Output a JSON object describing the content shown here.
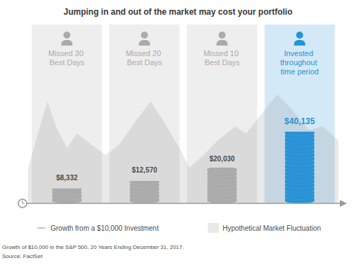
{
  "chart_data": {
    "type": "bar",
    "title": "Jumping in and out of the market may cost your portfolio",
    "categories": [
      "Missed 30 Best Days",
      "Missed 20 Best Days",
      "Missed 10 Best Days",
      "Invested throughout time period"
    ],
    "series": [
      {
        "name": "Growth from a $10,000 Investment",
        "type": "bar",
        "values": [
          8332,
          12570,
          20030,
          40135
        ],
        "value_labels": [
          "$8,332",
          "$12,570",
          "$20,030",
          "$40,135"
        ],
        "colors": [
          "#ababab",
          "#ababab",
          "#ababab",
          "#2a93d5"
        ]
      },
      {
        "name": "Hypothetical Market Fluctuation",
        "type": "area",
        "color": "rgba(120,120,120,0.16)",
        "x": [
          0,
          0.14,
          0.25,
          0.36,
          0.5,
          0.63,
          0.81,
          1.0,
          1.18,
          1.4,
          1.58,
          1.76,
          1.95,
          2.08,
          2.26,
          2.44,
          2.67,
          2.81,
          2.99,
          3.21,
          3.39,
          3.62,
          3.8,
          4.0
        ],
        "values": [
          19600,
          41000,
          57000,
          43000,
          31000,
          39000,
          33000,
          27000,
          33000,
          47000,
          57000,
          45000,
          31000,
          20000,
          27000,
          35000,
          43000,
          39000,
          49000,
          61000,
          53000,
          41000,
          43000,
          35000
        ]
      }
    ],
    "xlim": [
      0,
      4
    ],
    "ylim": [
      0,
      100000
    ],
    "data_labels": true,
    "tick_labels": false,
    "legend": "bottom",
    "annotations": [
      "Growth of $10,000 in the S&P 500, 20 Years Ending December 31, 2017.",
      "Source: FactSet"
    ]
  }
}
